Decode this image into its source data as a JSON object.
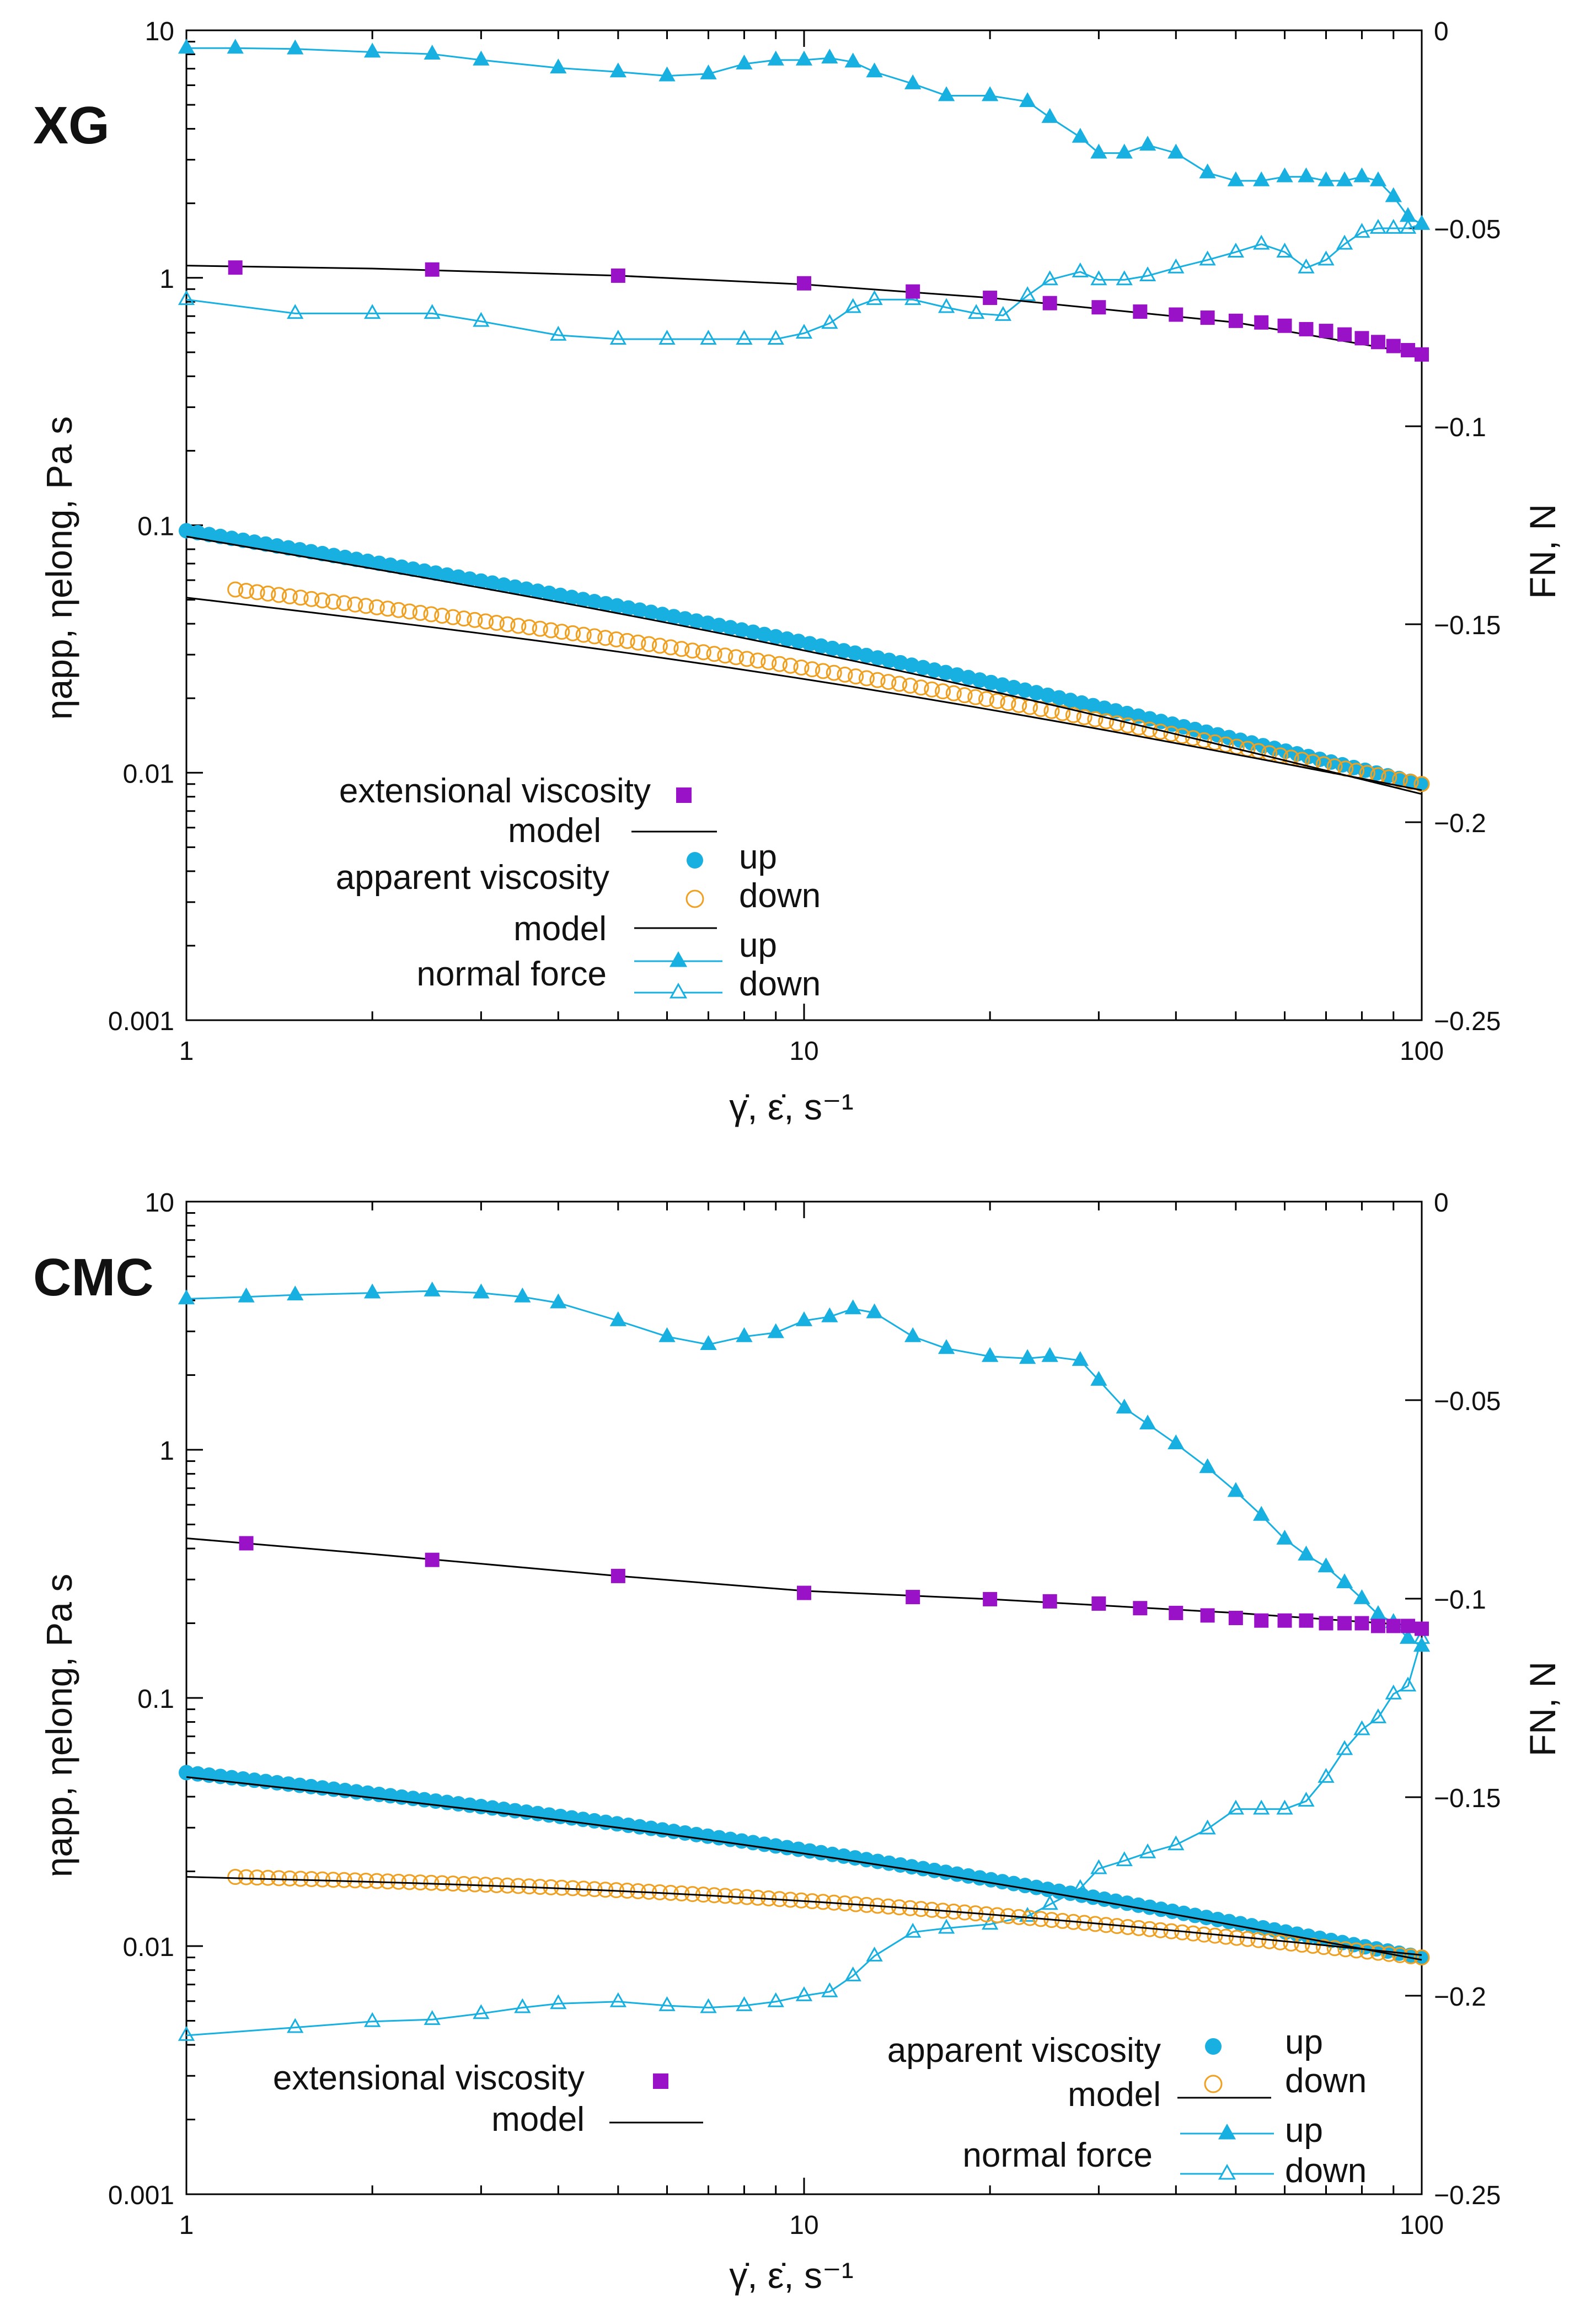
{
  "colors": {
    "apparent_up": "#17b0e0",
    "apparent_down": "#f0a020",
    "extensional": "#9a12c8",
    "model": "#000000",
    "normal_force": "#17b0e0",
    "axis": "#000000"
  },
  "chart_data": [
    {
      "type": "scatter",
      "panel_label": "XG",
      "xlabel": "γ̇, ε̇, s⁻¹",
      "ylabel_left": "ηapp, ηelong, Pa s",
      "ylabel_right": "FN, N",
      "xscale": "log",
      "xlim": [
        1,
        100
      ],
      "xticks": [
        "1",
        "10",
        "100"
      ],
      "yscale_left": "log",
      "ylim_left": [
        0.001,
        10
      ],
      "yticks_left": [
        "0.001",
        "0.01",
        "0.1",
        "1",
        "10"
      ],
      "ylim_right": [
        -0.25,
        0
      ],
      "yticks_right": [
        "−0.25",
        "−0.2",
        "−0.15",
        "−0.1",
        "−0.05",
        "0"
      ],
      "legend_position": "bottom-left",
      "legend": {
        "extensional_label": "extensional viscosity",
        "model_label": "model",
        "apparent_label": "apparent viscosity",
        "up_label": "up",
        "down_label": "down",
        "model2_label": "model",
        "normal_label": "normal force",
        "nf_up_label": "up",
        "nf_down_label": "down"
      },
      "series": {
        "extensional": {
          "x": [
            1.2,
            2.5,
            5,
            10,
            15,
            20,
            25,
            30,
            35,
            40,
            45,
            50,
            55,
            60,
            65,
            70,
            75,
            80,
            85,
            90,
            95,
            100
          ],
          "y": [
            1.1,
            1.08,
            1.02,
            0.95,
            0.88,
            0.83,
            0.79,
            0.76,
            0.73,
            0.71,
            0.69,
            0.67,
            0.66,
            0.64,
            0.62,
            0.61,
            0.59,
            0.57,
            0.55,
            0.53,
            0.51,
            0.49
          ]
        },
        "extensional_model": {
          "x": [
            1,
            2,
            5,
            10,
            20,
            50,
            100
          ],
          "y": [
            1.12,
            1.09,
            1.02,
            0.94,
            0.83,
            0.66,
            0.49
          ]
        },
        "apparent_up": {
          "x_range": [
            1,
            100
          ],
          "n": 110,
          "y_start": 0.095,
          "y_end": 0.009
        },
        "apparent_down": {
          "x_range": [
            1.2,
            100
          ],
          "n": 110,
          "y_start": 0.055,
          "y_end": 0.009
        },
        "apparent_model_up": {
          "x_range": [
            1,
            100
          ],
          "y_start": 0.09,
          "y_end": 0.0082
        },
        "apparent_model_down": {
          "x_range": [
            1,
            100
          ],
          "y_start": 0.051,
          "y_end": 0.0085
        },
        "normal_up": {
          "x": [
            1,
            1.2,
            1.5,
            2,
            2.5,
            3,
            4,
            5,
            6,
            7,
            8,
            9,
            10,
            11,
            12,
            13,
            15,
            17,
            20,
            23,
            25,
            28,
            30,
            33,
            36,
            40,
            45,
            50,
            55,
            60,
            65,
            70,
            75,
            80,
            85,
            90,
            95,
            100
          ],
          "y": [
            -0.0045,
            -0.0045,
            -0.0047,
            -0.0055,
            -0.006,
            -0.0075,
            -0.0095,
            -0.0105,
            -0.0115,
            -0.011,
            -0.0085,
            -0.0075,
            -0.0075,
            -0.007,
            -0.008,
            -0.0105,
            -0.0135,
            -0.0165,
            -0.0165,
            -0.018,
            -0.022,
            -0.027,
            -0.031,
            -0.031,
            -0.029,
            -0.031,
            -0.036,
            -0.038,
            -0.038,
            -0.037,
            -0.037,
            -0.038,
            -0.038,
            -0.037,
            -0.038,
            -0.042,
            -0.047,
            -0.049
          ]
        },
        "normal_down": {
          "x": [
            1,
            1.5,
            2,
            2.5,
            3,
            4,
            5,
            6,
            7,
            8,
            9,
            10,
            11,
            12,
            13,
            15,
            17,
            19,
            21,
            23,
            25,
            28,
            30,
            33,
            36,
            40,
            45,
            50,
            55,
            60,
            65,
            70,
            75,
            80,
            85,
            90,
            95,
            100
          ],
          "y": [
            -0.068,
            -0.0715,
            -0.0715,
            -0.0715,
            -0.0735,
            -0.077,
            -0.078,
            -0.078,
            -0.078,
            -0.078,
            -0.078,
            -0.0765,
            -0.074,
            -0.07,
            -0.068,
            -0.068,
            -0.07,
            -0.0715,
            -0.072,
            -0.067,
            -0.063,
            -0.061,
            -0.063,
            -0.063,
            -0.062,
            -0.06,
            -0.058,
            -0.056,
            -0.054,
            -0.056,
            -0.06,
            -0.058,
            -0.054,
            -0.051,
            -0.05,
            -0.05,
            -0.05,
            -0.049
          ]
        }
      }
    },
    {
      "type": "scatter",
      "panel_label": "CMC",
      "xlabel": "γ̇, ε̇, s⁻¹",
      "ylabel_left": "ηapp, ηelong, Pa s",
      "ylabel_right": "FN, N",
      "xscale": "log",
      "xlim": [
        1,
        100
      ],
      "xticks": [
        "1",
        "10",
        "100"
      ],
      "yscale_left": "log",
      "ylim_left": [
        0.001,
        10
      ],
      "yticks_left": [
        "0.001",
        "0.01",
        "0.1",
        "1",
        "10"
      ],
      "ylim_right": [
        -0.25,
        0
      ],
      "yticks_right": [
        "−0.25",
        "−0.2",
        "−0.15",
        "−0.1",
        "−0.05",
        "0"
      ],
      "legend_position": "bottom",
      "legend": {
        "extensional_label": "extensional viscosity",
        "model_label": "model",
        "apparent_label": "apparent viscosity",
        "up_label": "up",
        "down_label": "down",
        "model2_label": "model",
        "normal_label": "normal force",
        "nf_up_label": "up",
        "nf_down_label": "down"
      },
      "series": {
        "extensional": {
          "x": [
            1.25,
            2.5,
            5,
            10,
            15,
            20,
            25,
            30,
            35,
            40,
            45,
            50,
            55,
            60,
            65,
            70,
            75,
            80,
            85,
            90,
            95,
            100
          ],
          "y": [
            0.42,
            0.36,
            0.31,
            0.265,
            0.255,
            0.25,
            0.245,
            0.24,
            0.23,
            0.22,
            0.215,
            0.21,
            0.205,
            0.205,
            0.205,
            0.2,
            0.2,
            0.2,
            0.195,
            0.195,
            0.195,
            0.19
          ]
        },
        "extensional_model": {
          "x": [
            1,
            2,
            5,
            10,
            20,
            50,
            100
          ],
          "y": [
            0.44,
            0.38,
            0.31,
            0.27,
            0.25,
            0.22,
            0.195
          ]
        },
        "apparent_up": {
          "x_range": [
            1,
            100
          ],
          "n": 110,
          "y_start": 0.05,
          "y_end": 0.009
        },
        "apparent_down": {
          "x_range": [
            1.2,
            100
          ],
          "n": 110,
          "y_start": 0.019,
          "y_end": 0.009
        },
        "apparent_model_up": {
          "x_range": [
            1,
            100
          ],
          "y_start": 0.048,
          "y_end": 0.0088
        },
        "apparent_model_down": {
          "x_range": [
            1,
            100
          ],
          "y_start": 0.019,
          "y_end": 0.0092
        },
        "normal_up": {
          "x": [
            1,
            1.25,
            1.5,
            2,
            2.5,
            3,
            3.5,
            4,
            5,
            6,
            7,
            8,
            9,
            10,
            11,
            12,
            13,
            15,
            17,
            20,
            23,
            25,
            28,
            30,
            33,
            36,
            40,
            45,
            50,
            55,
            60,
            65,
            70,
            75,
            80,
            85,
            90,
            95,
            100
          ],
          "y": [
            -0.0245,
            -0.024,
            -0.0235,
            -0.023,
            -0.0225,
            -0.023,
            -0.024,
            -0.0255,
            -0.03,
            -0.034,
            -0.036,
            -0.034,
            -0.033,
            -0.03,
            -0.029,
            -0.027,
            -0.028,
            -0.034,
            -0.037,
            -0.039,
            -0.0395,
            -0.039,
            -0.04,
            -0.045,
            -0.052,
            -0.056,
            -0.061,
            -0.067,
            -0.073,
            -0.079,
            -0.085,
            -0.089,
            -0.092,
            -0.096,
            -0.1,
            -0.104,
            -0.106,
            -0.11,
            -0.112
          ]
        },
        "normal_down": {
          "x": [
            1,
            1.5,
            2,
            2.5,
            3,
            3.5,
            4,
            5,
            6,
            7,
            8,
            9,
            10,
            11,
            12,
            13,
            15,
            17,
            20,
            23,
            25,
            28,
            30,
            33,
            36,
            40,
            45,
            50,
            55,
            60,
            65,
            70,
            75,
            80,
            85,
            90,
            95,
            100
          ],
          "y": [
            -0.21,
            -0.208,
            -0.2065,
            -0.206,
            -0.2045,
            -0.203,
            -0.202,
            -0.2015,
            -0.2025,
            -0.203,
            -0.2025,
            -0.2015,
            -0.2,
            -0.199,
            -0.195,
            -0.19,
            -0.184,
            -0.183,
            -0.182,
            -0.18,
            -0.177,
            -0.173,
            -0.168,
            -0.166,
            -0.164,
            -0.162,
            -0.158,
            -0.153,
            -0.153,
            -0.153,
            -0.151,
            -0.145,
            -0.138,
            -0.133,
            -0.13,
            -0.124,
            -0.122,
            -0.11
          ]
        }
      }
    }
  ]
}
